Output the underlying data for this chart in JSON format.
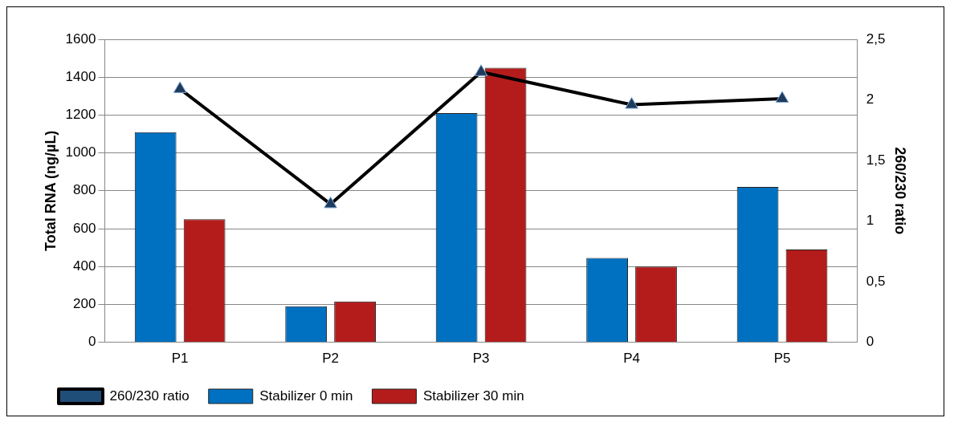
{
  "chart_data": {
    "type": "bar",
    "ylabel": "Total RNA (ng/µL)",
    "y2label": "260/230 ratio",
    "categories": [
      "P1",
      "P2",
      "P3",
      "P4",
      "P5"
    ],
    "series": [
      {
        "name": "Stabilizer 0 min",
        "color": "#0070c0",
        "values": [
          1110,
          190,
          1210,
          445,
          820
        ]
      },
      {
        "name": "Stabilizer 30 min",
        "color": "#b41c1c",
        "values": [
          650,
          215,
          1450,
          400,
          490
        ]
      },
      {
        "name": "260/230 ratio",
        "type": "line",
        "axis": "y2",
        "color": "#000000",
        "values": [
          2.09,
          1.14,
          2.23,
          1.96,
          2.01
        ],
        "marker": "triangle",
        "line_style": "solid"
      }
    ],
    "ylim": [
      0,
      1600
    ],
    "yticks": [
      0,
      200,
      400,
      600,
      800,
      1000,
      1200,
      1400,
      1600
    ],
    "y2lim": [
      0,
      2.5
    ],
    "y2ticks": [
      0,
      {
        "value": 0.5,
        "label": "0,5"
      },
      1,
      {
        "value": 1.5,
        "label": "1,5"
      },
      2,
      {
        "value": 2.5,
        "label": "2,5"
      }
    ],
    "grid": "y",
    "legend": "bottom"
  }
}
